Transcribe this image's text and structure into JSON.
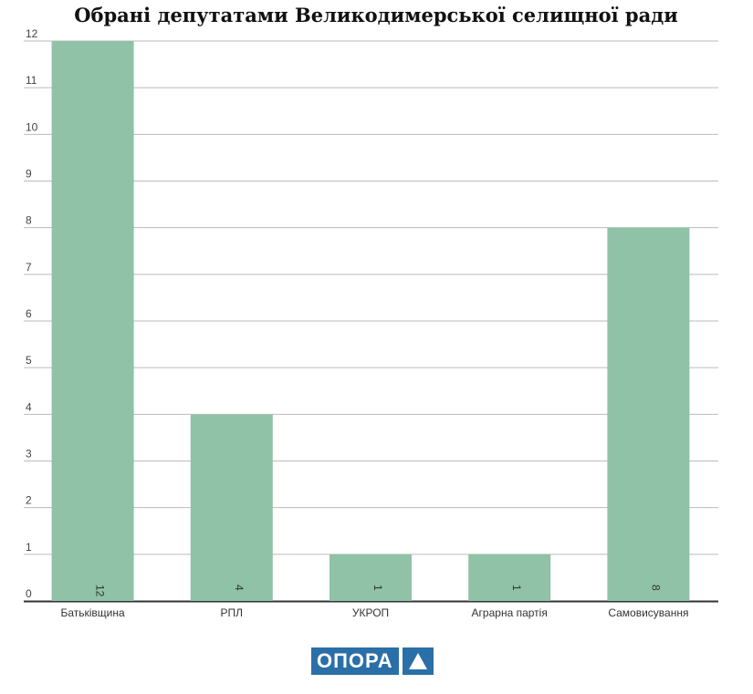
{
  "chart_data": {
    "type": "bar",
    "title": "Обрані депутатами Великодимерської селищної ради",
    "categories": [
      "Батьківщина",
      "РПЛ",
      "УКРОП",
      "Аграрна партія",
      "Самовисування"
    ],
    "values": [
      12,
      4,
      1,
      1,
      8
    ],
    "ylim": [
      0,
      12
    ],
    "yticks": [
      0,
      1,
      2,
      3,
      4,
      5,
      6,
      7,
      8,
      9,
      10,
      11,
      12
    ],
    "xlabel": "",
    "ylabel": "",
    "grid": true,
    "bar_color": "#8fc2a6",
    "grid_color": "#bbbbbb",
    "axis_color": "#333333"
  },
  "logo": {
    "text": "ОПОРА",
    "color": "#2b6fa8"
  }
}
